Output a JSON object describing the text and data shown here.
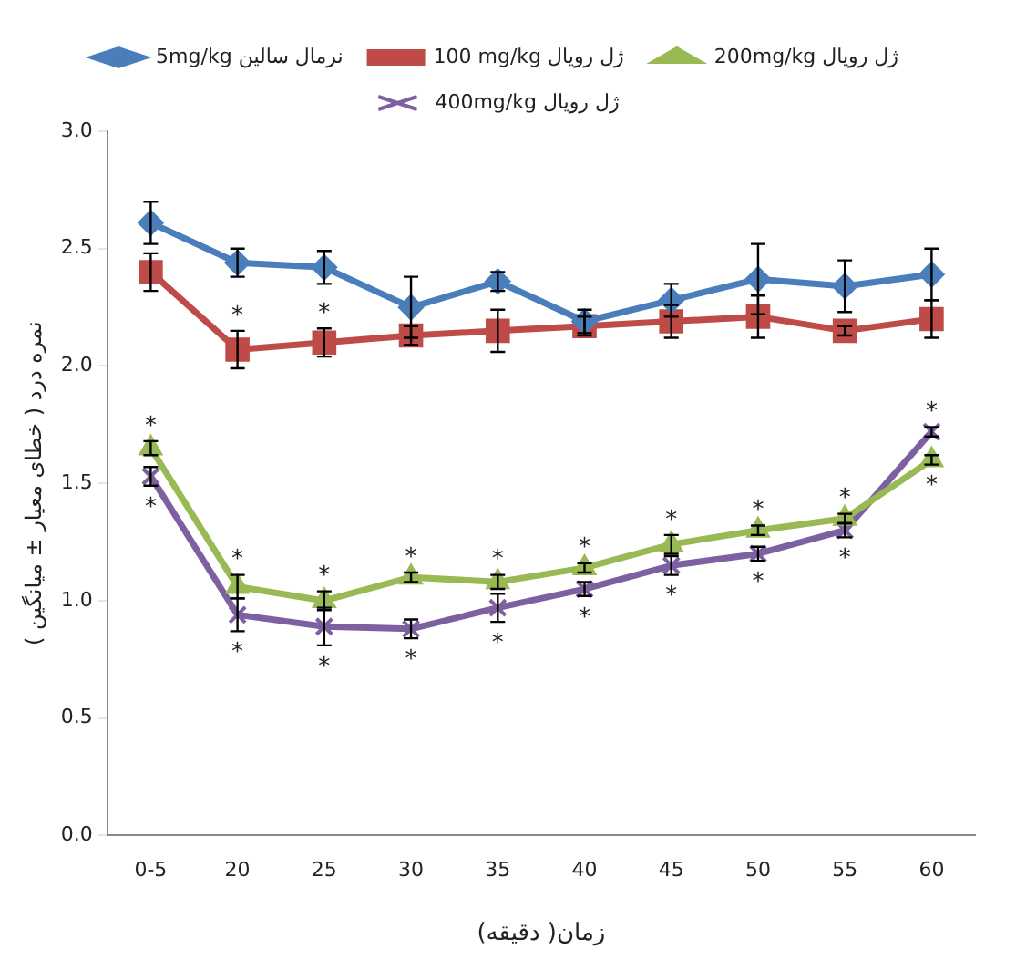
{
  "chart_data": {
    "type": "line",
    "xlabel": "زمان( دقیقه)",
    "ylabel": "نمره درد ( خطای معیار ± میانگین )",
    "categories": [
      "0-5",
      "20",
      "25",
      "30",
      "35",
      "40",
      "45",
      "50",
      "55",
      "60"
    ],
    "ylim": [
      0,
      3
    ],
    "yticks": [
      {
        "value": 0,
        "label": "0.0"
      },
      {
        "value": 0.5,
        "label": "0.5"
      },
      {
        "value": 1,
        "label": "1.0"
      },
      {
        "value": 1.5,
        "label": "1.5"
      },
      {
        "value": 2,
        "label": "2.0"
      },
      {
        "value": 2.5,
        "label": "2.5"
      },
      {
        "value": 3,
        "label": "3.0"
      }
    ],
    "grid": false,
    "legend": "top",
    "line_style": "solid",
    "series": [
      {
        "name": "5mg/kg نرمال سالین",
        "color": "#4a7ebb",
        "marker": "diamond",
        "values": [
          2.61,
          2.44,
          2.42,
          2.25,
          2.36,
          2.19,
          2.28,
          2.37,
          2.34,
          2.39
        ],
        "errors": [
          0.09,
          0.06,
          0.07,
          0.13,
          0.04,
          0.05,
          0.07,
          0.15,
          0.11,
          0.11
        ]
      },
      {
        "name": "100 mg/kg ژل رویال",
        "color": "#be4b48",
        "marker": "square",
        "values": [
          2.4,
          2.07,
          2.1,
          2.13,
          2.15,
          2.17,
          2.19,
          2.21,
          2.15,
          2.2
        ],
        "errors": [
          0.08,
          0.08,
          0.06,
          0.04,
          0.09,
          0.04,
          0.07,
          0.09,
          0.02,
          0.08
        ]
      },
      {
        "name": "200mg/kg ژل رویال",
        "color": "#98b954",
        "marker": "triangle",
        "values": [
          1.65,
          1.06,
          1.0,
          1.1,
          1.08,
          1.14,
          1.24,
          1.3,
          1.35,
          1.6
        ],
        "errors": [
          0.03,
          0.05,
          0.04,
          0.02,
          0.03,
          0.02,
          0.04,
          0.02,
          0.02,
          0.02
        ]
      },
      {
        "name": "400mg/kg ژل رویال",
        "color": "#7d60a0",
        "marker": "cross",
        "values": [
          1.53,
          0.94,
          0.89,
          0.88,
          0.97,
          1.05,
          1.15,
          1.2,
          1.3,
          1.72
        ],
        "errors": [
          0.04,
          0.07,
          0.08,
          0.04,
          0.06,
          0.03,
          0.04,
          0.03,
          0.03,
          0.02
        ]
      }
    ],
    "annotations": [
      {
        "text": "*",
        "x": "20",
        "y": 2.07
      },
      {
        "text": "*",
        "x": "25",
        "y": 2.1
      },
      {
        "text": "*",
        "x": "0-5",
        "y": 1.65
      },
      {
        "text": "*",
        "x": "20",
        "y": 1.06
      },
      {
        "text": "*",
        "x": "25",
        "y": 1.0
      },
      {
        "text": "*",
        "x": "30",
        "y": 1.1
      },
      {
        "text": "*",
        "x": "35",
        "y": 1.08
      },
      {
        "text": "*",
        "x": "40",
        "y": 1.14
      },
      {
        "text": "*",
        "x": "45",
        "y": 1.24
      },
      {
        "text": "*",
        "x": "50",
        "y": 1.3
      },
      {
        "text": "*",
        "x": "55",
        "y": 1.35
      },
      {
        "text": "*",
        "x": "60",
        "y": 1.6
      },
      {
        "text": "*",
        "x": "0-5",
        "y": 1.53
      },
      {
        "text": "*",
        "x": "20",
        "y": 0.94
      },
      {
        "text": "*",
        "x": "25",
        "y": 0.89
      },
      {
        "text": "*",
        "x": "30",
        "y": 0.88
      },
      {
        "text": "*",
        "x": "35",
        "y": 0.97
      },
      {
        "text": "*",
        "x": "40",
        "y": 1.05
      },
      {
        "text": "*",
        "x": "45",
        "y": 1.15
      },
      {
        "text": "*",
        "x": "50",
        "y": 1.2
      },
      {
        "text": "*",
        "x": "55",
        "y": 1.3
      },
      {
        "text": "*",
        "x": "60",
        "y": 1.72
      }
    ]
  }
}
